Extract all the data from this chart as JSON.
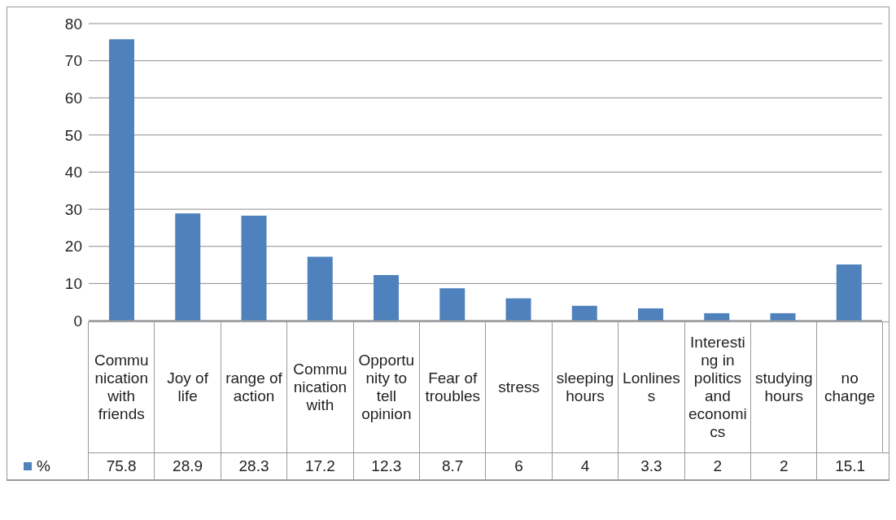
{
  "chart_data": {
    "type": "bar",
    "categories": [
      "Communication with friends",
      "Joy of life",
      "range of action",
      "Communication with",
      "Opportunity to tell opinion",
      "Fear of troubles",
      "stress",
      "sleeping hours",
      "Lonliness",
      "Interesting in politics and economics",
      "studying hours",
      "no change"
    ],
    "series": [
      {
        "name": "%",
        "color": "#4f81bd",
        "values": [
          75.8,
          28.9,
          28.3,
          17.2,
          12.3,
          8.7,
          6,
          4,
          3.3,
          2,
          2,
          15.1
        ]
      }
    ],
    "ylim": [
      0,
      80
    ],
    "yticks": [
      0,
      10,
      20,
      30,
      40,
      50,
      60,
      70,
      80
    ],
    "grid": "y",
    "data_labels": true,
    "legend": "bottom left"
  }
}
